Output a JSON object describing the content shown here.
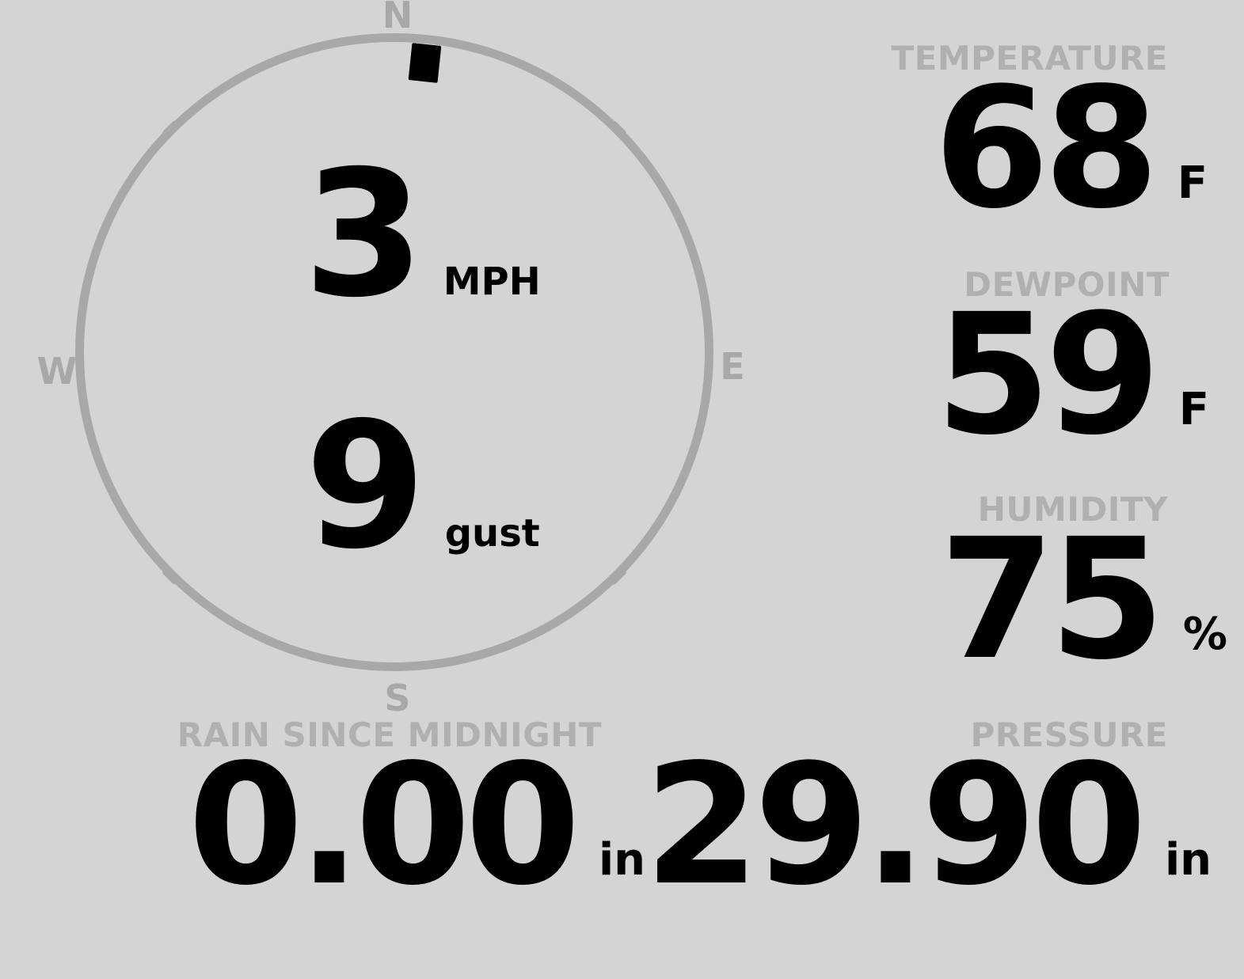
{
  "colors": {
    "bg": "#d4d4d4",
    "dial": "#a8a8a8",
    "label": "#b0b0b0",
    "value": "#000000"
  },
  "compass": {
    "cardinals": {
      "north": "N",
      "east": "E",
      "south": "S",
      "west": "W"
    },
    "wind": {
      "speed": "3",
      "speed_unit": "MPH",
      "gust": "9",
      "gust_unit": "gust",
      "direction_deg": 6
    }
  },
  "metrics": {
    "temperature": {
      "label": "TEMPERATURE",
      "value": "68",
      "unit": "F"
    },
    "dewpoint": {
      "label": "DEWPOINT",
      "value": "59",
      "unit": "F"
    },
    "humidity": {
      "label": "HUMIDITY",
      "value": "75",
      "unit": "%"
    },
    "rain": {
      "label": "RAIN SINCE MIDNIGHT",
      "value": "0.00",
      "unit": "in"
    },
    "pressure": {
      "label": "PRESSURE",
      "value": "29.90",
      "unit": "in"
    }
  }
}
